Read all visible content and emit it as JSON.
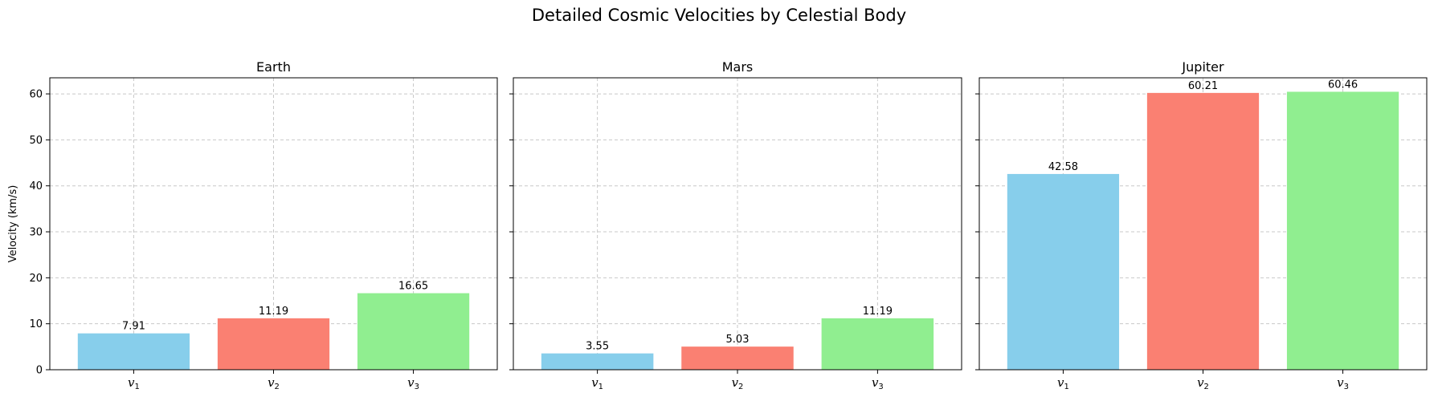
{
  "title": "Detailed Cosmic Velocities by Celestial Body",
  "chart_data": {
    "type": "bar",
    "ylabel": "Velocity (km/s)",
    "ylim": [
      0,
      63.5
    ],
    "yticks": [
      0,
      10,
      20,
      30,
      40,
      50,
      60
    ],
    "grid": true,
    "sharey": true,
    "bar_colors": [
      "#87ceeb",
      "#fa8072",
      "#90ee90"
    ],
    "categories": [
      {
        "base": "v",
        "sub": "1"
      },
      {
        "base": "v",
        "sub": "2"
      },
      {
        "base": "v",
        "sub": "3"
      }
    ],
    "panels": [
      {
        "title": "Earth",
        "values": [
          7.91,
          11.19,
          16.65
        ],
        "labels": [
          "7.91",
          "11.19",
          "16.65"
        ]
      },
      {
        "title": "Mars",
        "values": [
          3.55,
          5.03,
          11.19
        ],
        "labels": [
          "3.55",
          "5.03",
          "11.19"
        ]
      },
      {
        "title": "Jupiter",
        "values": [
          42.58,
          60.21,
          60.46
        ],
        "labels": [
          "42.58",
          "60.21",
          "60.46"
        ]
      }
    ]
  }
}
